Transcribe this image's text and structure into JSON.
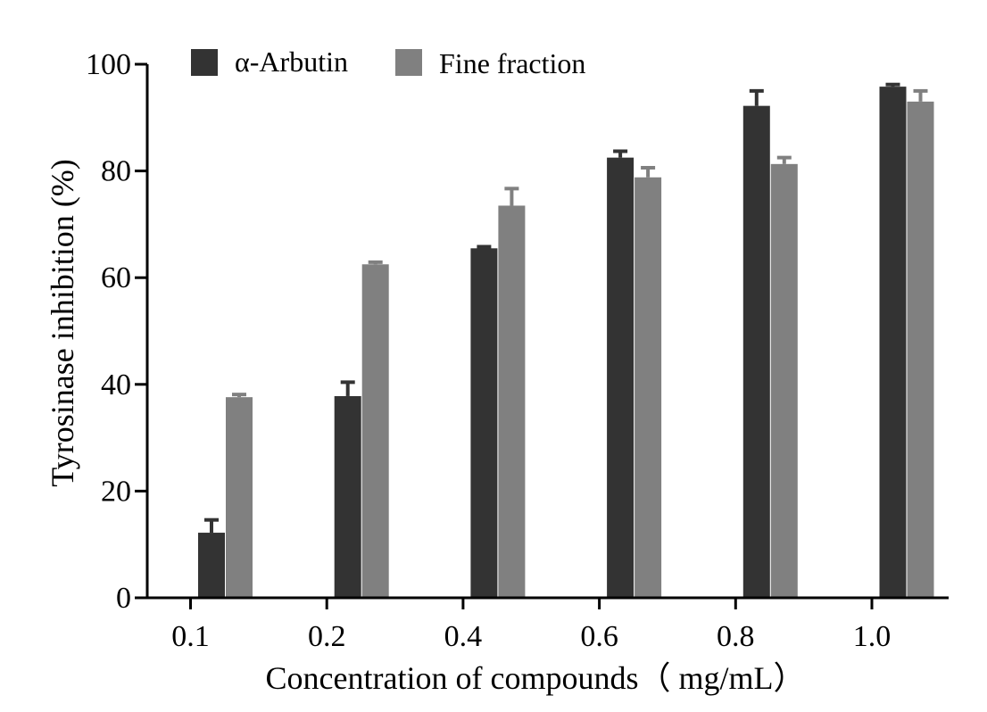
{
  "chart_data": {
    "type": "bar",
    "title": "",
    "xlabel": "Concentration of compounds（ mg/mL）",
    "ylabel": "Tyrosinase inhibition (%)",
    "ylim": [
      0,
      100
    ],
    "yticks": [
      "0",
      "20",
      "40",
      "60",
      "80",
      "100"
    ],
    "categories": [
      "0.1",
      "0.2",
      "0.4",
      "0.6",
      "0.8",
      "1.0"
    ],
    "series": [
      {
        "name": "α-Arbutin",
        "color": "#333333",
        "values": [
          12.2,
          37.8,
          65.5,
          82.5,
          92.2,
          95.8
        ],
        "errors": [
          2.4,
          2.6,
          0.3,
          1.2,
          2.8,
          0.4
        ]
      },
      {
        "name": "Fine fraction",
        "color": "#808080",
        "values": [
          37.6,
          62.5,
          73.5,
          78.8,
          81.3,
          93.0
        ],
        "errors": [
          0.5,
          0.4,
          3.2,
          1.8,
          1.2,
          2.0
        ]
      }
    ],
    "legend_position": "top",
    "grid": false
  }
}
